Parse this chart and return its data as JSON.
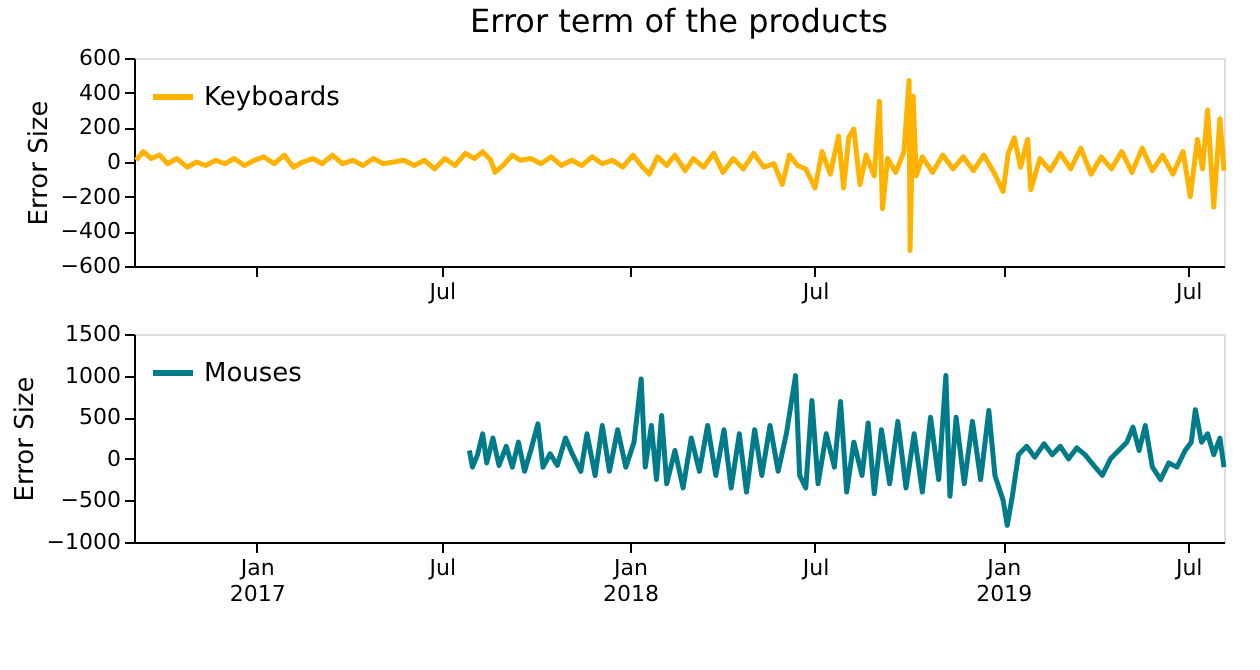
{
  "chart_data": [
    {
      "type": "line",
      "title": "Error term of the products",
      "ylabel": "Error Size",
      "legend": "top left",
      "grid": false,
      "line_style": "solid",
      "xlim": [
        "2016-09-03",
        "2019-08-05"
      ],
      "xticks": [
        {
          "value": "2017-01-01",
          "label": null
        },
        {
          "value": "2017-07-01",
          "label": "Jul"
        },
        {
          "value": "2018-01-01",
          "label": null
        },
        {
          "value": "2018-07-01",
          "label": "Jul"
        },
        {
          "value": "2019-01-01",
          "label": null
        },
        {
          "value": "2019-07-01",
          "label": "Jul"
        }
      ],
      "ylim": [
        -600,
        600
      ],
      "yticks": [
        -600,
        -400,
        -200,
        0,
        200,
        400,
        600
      ],
      "series": [
        {
          "name": "Keyboards",
          "color": "#ffb300",
          "x": [
            "2016-09-05",
            "2016-09-12",
            "2016-09-20",
            "2016-09-28",
            "2016-10-06",
            "2016-10-15",
            "2016-10-25",
            "2016-11-03",
            "2016-11-12",
            "2016-11-22",
            "2016-12-01",
            "2016-12-10",
            "2016-12-20",
            "2016-12-30",
            "2017-01-08",
            "2017-01-18",
            "2017-01-28",
            "2017-02-06",
            "2017-02-15",
            "2017-02-25",
            "2017-03-06",
            "2017-03-16",
            "2017-03-26",
            "2017-04-05",
            "2017-04-15",
            "2017-04-25",
            "2017-05-05",
            "2017-05-15",
            "2017-05-25",
            "2017-06-04",
            "2017-06-14",
            "2017-06-24",
            "2017-07-04",
            "2017-07-14",
            "2017-07-24",
            "2017-08-02",
            "2017-08-10",
            "2017-08-18",
            "2017-08-22",
            "2017-08-30",
            "2017-09-08",
            "2017-09-16",
            "2017-09-26",
            "2017-10-06",
            "2017-10-16",
            "2017-10-26",
            "2017-11-05",
            "2017-11-15",
            "2017-11-25",
            "2017-12-05",
            "2017-12-15",
            "2017-12-25",
            "2018-01-04",
            "2018-01-12",
            "2018-01-20",
            "2018-01-28",
            "2018-02-06",
            "2018-02-14",
            "2018-02-24",
            "2018-03-04",
            "2018-03-14",
            "2018-03-24",
            "2018-04-02",
            "2018-04-12",
            "2018-04-22",
            "2018-05-02",
            "2018-05-12",
            "2018-05-22",
            "2018-05-30",
            "2018-06-06",
            "2018-06-14",
            "2018-06-22",
            "2018-07-01",
            "2018-07-08",
            "2018-07-16",
            "2018-07-24",
            "2018-07-29",
            "2018-08-03",
            "2018-08-08",
            "2018-08-14",
            "2018-08-20",
            "2018-08-28",
            "2018-09-02",
            "2018-09-05",
            "2018-09-10",
            "2018-09-18",
            "2018-09-26",
            "2018-10-01",
            "2018-10-02",
            "2018-10-05",
            "2018-10-08",
            "2018-10-14",
            "2018-10-24",
            "2018-11-03",
            "2018-11-13",
            "2018-11-23",
            "2018-12-03",
            "2018-12-13",
            "2018-12-23",
            "2019-01-01",
            "2019-01-06",
            "2019-01-12",
            "2019-01-18",
            "2019-01-25",
            "2019-01-28",
            "2019-02-06",
            "2019-02-16",
            "2019-02-26",
            "2019-03-08",
            "2019-03-18",
            "2019-03-28",
            "2019-04-07",
            "2019-04-17",
            "2019-04-27",
            "2019-05-07",
            "2019-05-17",
            "2019-05-27",
            "2019-06-06",
            "2019-06-16",
            "2019-06-26",
            "2019-07-03",
            "2019-07-10",
            "2019-07-15",
            "2019-07-20",
            "2019-07-26",
            "2019-08-01",
            "2019-08-05"
          ],
          "values": [
            10,
            60,
            20,
            40,
            -10,
            20,
            -30,
            0,
            -20,
            10,
            -10,
            20,
            -20,
            10,
            30,
            -10,
            40,
            -30,
            0,
            20,
            -10,
            40,
            -10,
            10,
            -20,
            20,
            -10,
            0,
            10,
            -20,
            10,
            -40,
            20,
            -20,
            50,
            20,
            60,
            10,
            -60,
            -20,
            40,
            10,
            20,
            -10,
            30,
            -20,
            10,
            -20,
            30,
            -10,
            10,
            -30,
            40,
            -20,
            -70,
            30,
            -20,
            40,
            -50,
            20,
            -30,
            50,
            -60,
            20,
            -40,
            50,
            -30,
            -10,
            -130,
            40,
            -20,
            -40,
            -150,
            60,
            -70,
            150,
            -150,
            140,
            190,
            -130,
            40,
            -80,
            350,
            -270,
            20,
            -60,
            60,
            470,
            -510,
            380,
            -80,
            30,
            -60,
            40,
            -40,
            30,
            -50,
            40,
            -60,
            -170,
            50,
            140,
            -30,
            130,
            -160,
            20,
            -50,
            50,
            -40,
            80,
            -70,
            30,
            -40,
            60,
            -60,
            80,
            -50,
            40,
            -70,
            60,
            -200,
            130,
            -40,
            300,
            -260,
            250,
            -50
          ]
        }
      ]
    },
    {
      "type": "line",
      "ylabel": "Error Size",
      "legend": "top left",
      "grid": false,
      "line_style": "solid",
      "xlim": [
        "2016-09-03",
        "2019-08-05"
      ],
      "xticks": [
        {
          "value": "2017-01-01",
          "label": "Jan\n2017"
        },
        {
          "value": "2017-07-01",
          "label": "Jul"
        },
        {
          "value": "2018-01-01",
          "label": "Jan\n2018"
        },
        {
          "value": "2018-07-01",
          "label": "Jul"
        },
        {
          "value": "2019-01-01",
          "label": "Jan\n2019"
        },
        {
          "value": "2019-07-01",
          "label": "Jul"
        }
      ],
      "ylim": [
        -1000,
        1500
      ],
      "yticks": [
        -1000,
        -500,
        0,
        500,
        1000,
        1500
      ],
      "series": [
        {
          "name": "Mouses",
          "color": "#007b8a",
          "x": [
            "2017-07-28",
            "2017-07-31",
            "2017-08-05",
            "2017-08-10",
            "2017-08-14",
            "2017-08-20",
            "2017-08-26",
            "2017-09-02",
            "2017-09-08",
            "2017-09-14",
            "2017-09-20",
            "2017-09-26",
            "2017-10-03",
            "2017-10-08",
            "2017-10-15",
            "2017-10-22",
            "2017-10-30",
            "2017-11-06",
            "2017-11-14",
            "2017-11-20",
            "2017-11-28",
            "2017-12-05",
            "2017-12-12",
            "2017-12-20",
            "2017-12-28",
            "2018-01-05",
            "2018-01-12",
            "2018-01-16",
            "2018-01-22",
            "2018-01-27",
            "2018-02-01",
            "2018-02-06",
            "2018-02-14",
            "2018-02-22",
            "2018-03-02",
            "2018-03-10",
            "2018-03-18",
            "2018-03-26",
            "2018-04-03",
            "2018-04-10",
            "2018-04-18",
            "2018-04-25",
            "2018-05-03",
            "2018-05-10",
            "2018-05-18",
            "2018-05-26",
            "2018-06-03",
            "2018-06-12",
            "2018-06-16",
            "2018-06-22",
            "2018-06-28",
            "2018-07-04",
            "2018-07-12",
            "2018-07-20",
            "2018-07-26",
            "2018-08-01",
            "2018-08-08",
            "2018-08-16",
            "2018-08-22",
            "2018-08-28",
            "2018-09-04",
            "2018-09-12",
            "2018-09-20",
            "2018-09-28",
            "2018-10-06",
            "2018-10-14",
            "2018-10-22",
            "2018-10-30",
            "2018-11-06",
            "2018-11-10",
            "2018-11-16",
            "2018-11-24",
            "2018-12-02",
            "2018-12-10",
            "2018-12-18",
            "2018-12-24",
            "2019-01-01",
            "2019-01-05",
            "2019-01-10",
            "2019-01-16",
            "2019-01-24",
            "2019-02-01",
            "2019-02-10",
            "2019-02-18",
            "2019-02-26",
            "2019-03-06",
            "2019-03-14",
            "2019-03-22",
            "2019-04-01",
            "2019-04-08",
            "2019-04-16",
            "2019-04-24",
            "2019-05-02",
            "2019-05-08",
            "2019-05-14",
            "2019-05-20",
            "2019-05-27",
            "2019-06-04",
            "2019-06-12",
            "2019-06-20",
            "2019-06-28",
            "2019-07-04",
            "2019-07-08",
            "2019-07-14",
            "2019-07-20",
            "2019-07-26",
            "2019-08-01",
            "2019-08-05"
          ],
          "values": [
            100,
            -100,
            50,
            300,
            -50,
            250,
            -80,
            150,
            -100,
            200,
            -150,
            100,
            420,
            -100,
            60,
            -80,
            250,
            50,
            -150,
            300,
            -200,
            400,
            -150,
            350,
            -100,
            200,
            960,
            -100,
            400,
            -250,
            520,
            -300,
            100,
            -350,
            250,
            -150,
            400,
            -200,
            350,
            -350,
            300,
            -400,
            350,
            -200,
            400,
            -150,
            300,
            1000,
            -200,
            -350,
            700,
            -300,
            300,
            -100,
            690,
            -400,
            200,
            -200,
            430,
            -420,
            350,
            -300,
            450,
            -350,
            300,
            -400,
            500,
            -250,
            1000,
            -450,
            500,
            -300,
            450,
            -250,
            580,
            -200,
            -500,
            -800,
            -450,
            50,
            150,
            20,
            180,
            50,
            150,
            0,
            130,
            50,
            -100,
            -200,
            0,
            100,
            200,
            380,
            100,
            400,
            -100,
            -250,
            -50,
            -100,
            100,
            200,
            590,
            200,
            300,
            50,
            250,
            -100
          ]
        }
      ]
    }
  ]
}
